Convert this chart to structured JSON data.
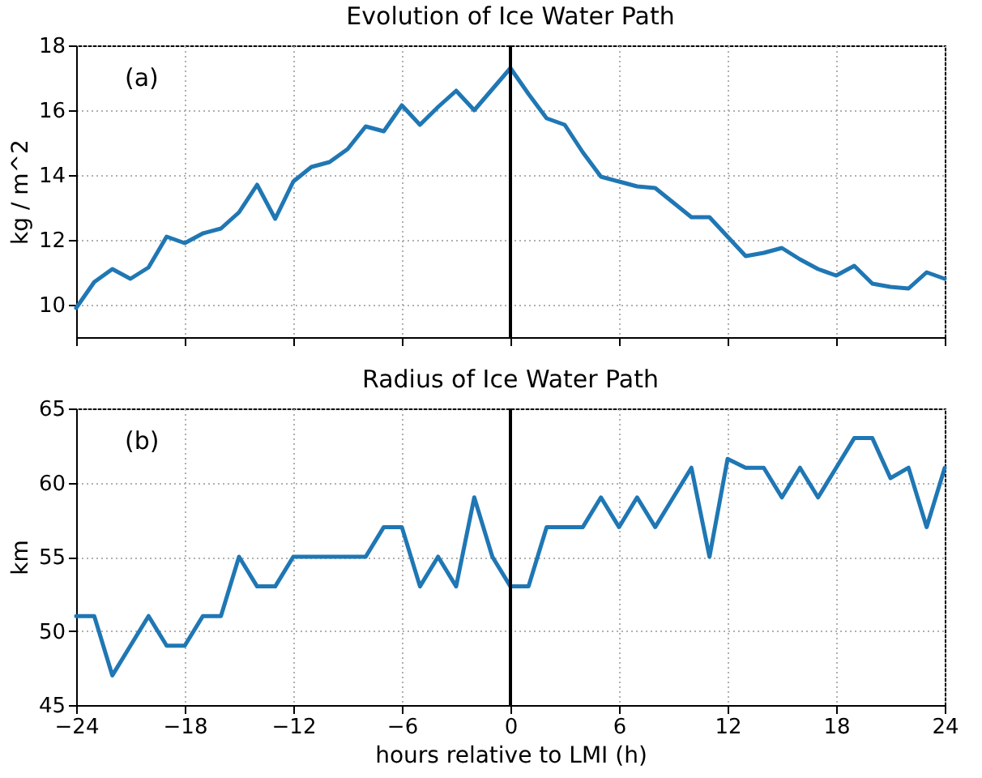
{
  "chart_data": [
    {
      "type": "line",
      "title": "Evolution of Ice Water Path",
      "ylabel": "kg / m^2",
      "annotations": [
        "(a)"
      ],
      "x": [
        -24,
        -23,
        -22,
        -21,
        -20,
        -19,
        -18,
        -17,
        -16,
        -15,
        -14,
        -13,
        -12,
        -11,
        -10,
        -9,
        -8,
        -7,
        -6,
        -5,
        -4,
        -3,
        -2,
        -1,
        0,
        1,
        2,
        3,
        4,
        5,
        6,
        7,
        8,
        9,
        10,
        11,
        12,
        13,
        14,
        15,
        16,
        17,
        18,
        19,
        20,
        21,
        22,
        23,
        24
      ],
      "series": [
        {
          "color": "#1f77b4",
          "values": [
            9.9,
            10.7,
            11.1,
            10.8,
            11.15,
            12.1,
            11.9,
            12.2,
            12.35,
            12.85,
            13.7,
            12.65,
            13.8,
            14.25,
            14.4,
            14.8,
            15.5,
            15.35,
            16.15,
            15.55,
            16.1,
            16.6,
            16.0,
            16.65,
            17.3,
            16.5,
            15.75,
            15.55,
            14.7,
            13.95,
            13.8,
            13.65,
            13.6,
            13.15,
            12.7,
            12.7,
            12.1,
            11.5,
            11.6,
            11.75,
            11.4,
            11.1,
            10.9,
            11.2,
            10.65,
            10.55,
            10.5,
            11.0,
            10.8
          ]
        }
      ],
      "xlim": [
        -24,
        24
      ],
      "xticks": [
        -24,
        -18,
        -12,
        -6,
        0,
        6,
        12,
        18,
        24
      ],
      "ylim": [
        9,
        18
      ],
      "yticks": [
        10,
        12,
        14,
        16,
        18
      ],
      "ref_lines": [
        {
          "axis": "x",
          "value": 0,
          "color": "#000000"
        }
      ],
      "grid": true,
      "tick_labels": "y",
      "line_style": "solid"
    },
    {
      "type": "line",
      "title": "Radius of Ice Water Path",
      "xlabel": "hours relative to LMI (h)",
      "ylabel": "km",
      "annotations": [
        "(b)"
      ],
      "x": [
        -24,
        -23,
        -22,
        -21,
        -20,
        -19,
        -18,
        -17,
        -16,
        -15,
        -14,
        -13,
        -12,
        -11,
        -10,
        -9,
        -8,
        -7,
        -6,
        -5,
        -4,
        -3,
        -2,
        -1,
        0,
        1,
        2,
        3,
        4,
        5,
        6,
        7,
        8,
        9,
        10,
        11,
        12,
        13,
        14,
        15,
        16,
        17,
        18,
        19,
        20,
        21,
        22,
        23,
        24
      ],
      "series": [
        {
          "color": "#1f77b4",
          "values": [
            51,
            51,
            47,
            49,
            51,
            49,
            49,
            51,
            51,
            55,
            53,
            53,
            55,
            55,
            55,
            55,
            55,
            57,
            57,
            53,
            55,
            53,
            59,
            55,
            53,
            53,
            57,
            57,
            57,
            59,
            57,
            59,
            57,
            59,
            61,
            55,
            61.6,
            61,
            61,
            59,
            61,
            59,
            61,
            63,
            63,
            60.3,
            61,
            57,
            61
          ]
        }
      ],
      "xlim": [
        -24,
        24
      ],
      "xticks": [
        -24,
        -18,
        -12,
        -6,
        0,
        6,
        12,
        18,
        24
      ],
      "ylim": [
        45,
        65
      ],
      "yticks": [
        45,
        50,
        55,
        60,
        65
      ],
      "ref_lines": [
        {
          "axis": "x",
          "value": 0,
          "color": "#000000"
        }
      ],
      "grid": true,
      "line_style": "solid"
    }
  ]
}
